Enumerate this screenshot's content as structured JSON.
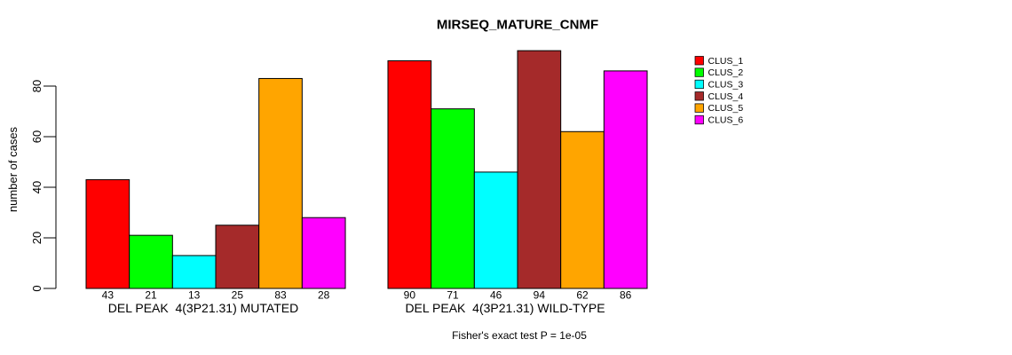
{
  "figure": {
    "background": "#FFFFFF",
    "text_color": "#000000"
  },
  "chart_data": {
    "type": "bar",
    "title": "MIRSEQ_MATURE_CNMF",
    "ylabel": "number of cases",
    "xlabel": "",
    "yticks": [
      0,
      20,
      40,
      60,
      80
    ],
    "ylim": [
      0,
      94
    ],
    "grid": false,
    "bar_borders": "#000000",
    "categories": [
      "CLUS_1",
      "CLUS_2",
      "CLUS_3",
      "CLUS_4",
      "CLUS_5",
      "CLUS_6"
    ],
    "colors": [
      "#FF0000",
      "#00FF00",
      "#00FFFF",
      "#A52A2A",
      "#FFA500",
      "#FF00FF"
    ],
    "groups": [
      {
        "label": "DEL PEAK  4(3P21.31) MUTATED",
        "values": [
          43,
          21,
          13,
          25,
          83,
          28
        ]
      },
      {
        "label": "DEL PEAK  4(3P21.31) WILD-TYPE",
        "values": [
          90,
          71,
          46,
          94,
          62,
          86
        ]
      }
    ],
    "value_labels_shown": true,
    "annotation": "Fisher's exact test P = 1e-05",
    "legend_position": "right",
    "legend_items": [
      {
        "label": "CLUS_1",
        "color": "#FF0000"
      },
      {
        "label": "CLUS_2",
        "color": "#00FF00"
      },
      {
        "label": "CLUS_3",
        "color": "#00FFFF"
      },
      {
        "label": "CLUS_4",
        "color": "#A52A2A"
      },
      {
        "label": "CLUS_5",
        "color": "#FFA500"
      },
      {
        "label": "CLUS_6",
        "color": "#FF00FF"
      }
    ]
  }
}
